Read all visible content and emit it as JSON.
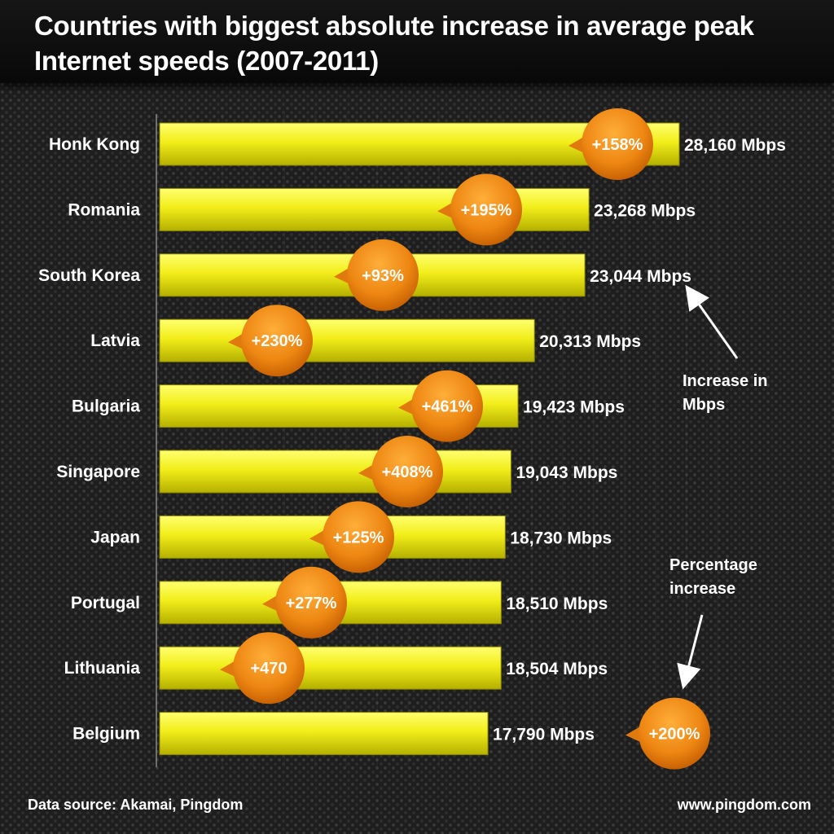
{
  "title": "Countries with biggest absolute increase in average peak Internet speeds (2007-2011)",
  "footer": {
    "source": "Data source: Akamai, Pingdom",
    "site": "www.pingdom.com"
  },
  "annotations": {
    "mbps": [
      "Increase in",
      "Mbps"
    ],
    "percent": [
      "Percentage",
      "increase"
    ]
  },
  "colors": {
    "bar_light": "#ffff66",
    "bar_dark": "#c8c400",
    "bubble": "#f08c1a",
    "bubble_dark": "#c05a00"
  },
  "chart_data": {
    "type": "bar",
    "orientation": "horizontal",
    "title": "Countries with biggest absolute increase in average peak Internet speeds (2007-2011)",
    "categories": [
      "Honk Kong",
      "Romania",
      "South Korea",
      "Latvia",
      "Bulgaria",
      "Singapore",
      "Japan",
      "Portugal",
      "Lithuania",
      "Belgium"
    ],
    "values": [
      28160,
      23268,
      23044,
      20313,
      19423,
      19043,
      18730,
      18510,
      18504,
      17790
    ],
    "value_labels": [
      "28,160 Mbps",
      "23,268 Mbps",
      "23,044 Mbps",
      "20,313 Mbps",
      "19,423 Mbps",
      "19,043 Mbps",
      "18,730 Mbps",
      "18,510 Mbps",
      "18,504 Mbps",
      "17,790 Mbps"
    ],
    "percent_labels": [
      "+158%",
      "+195%",
      "+93%",
      "+230%",
      "+461%",
      "+408%",
      "+125%",
      "+277%",
      "+470",
      "+200%"
    ],
    "percent_values": [
      158,
      195,
      93,
      230,
      461,
      408,
      125,
      277,
      470,
      200
    ],
    "xlim": [
      0,
      28160
    ],
    "grid": false,
    "legend": "none"
  }
}
